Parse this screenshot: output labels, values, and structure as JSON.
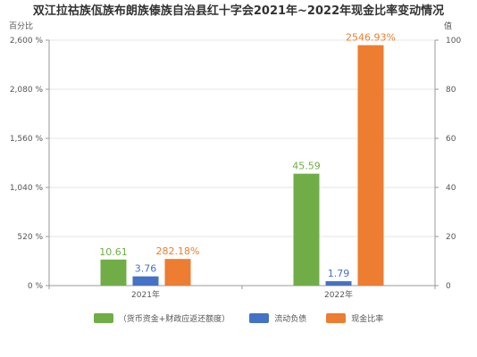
{
  "chart_data": {
    "type": "bar",
    "title": "双江拉祜族佤族布朗族傣族自治县红十字会2021年~2022年现金比率变动情况",
    "categories": [
      "2021年",
      "2022年"
    ],
    "series": [
      {
        "name": "（货币资金+财政应返还额度）",
        "axis": "right",
        "color": "#70ad47",
        "values": [
          10.61,
          45.59
        ],
        "labels": [
          "10.61",
          "45.59"
        ]
      },
      {
        "name": "流动负债",
        "axis": "right",
        "color": "#4472c4",
        "values": [
          3.76,
          1.79
        ],
        "labels": [
          "3.76",
          "1.79"
        ]
      },
      {
        "name": "现金比率",
        "axis": "left",
        "color": "#ed7d31",
        "values": [
          282.18,
          2546.93
        ],
        "labels": [
          "282.18%",
          "2546.93%"
        ]
      }
    ],
    "y_left": {
      "label": "百分比",
      "min": 0,
      "max": 2600,
      "ticks": [
        "0 %",
        "520 %",
        "1,040 %",
        "1,560 %",
        "2,080 %",
        "2,600 %"
      ]
    },
    "y_right": {
      "label": "值",
      "min": 0,
      "max": 100,
      "ticks": [
        "0",
        "20",
        "40",
        "60",
        "80",
        "100"
      ]
    },
    "grid": true,
    "legend_position": "bottom"
  }
}
